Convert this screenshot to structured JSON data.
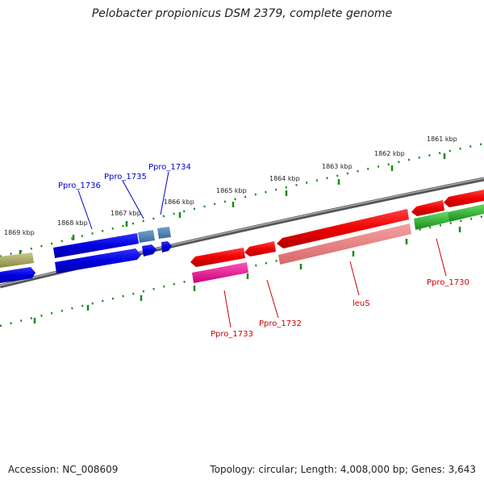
{
  "title": "Pelobacter propionicus DSM 2379, complete genome",
  "accession": "Accession: NC_008609",
  "summary": "Topology: circular; Length: 4,008,000 bp; Genes: 3,643",
  "kbp_labels": [
    "1861 kbp",
    "1862 kbp",
    "1863 kbp",
    "1864 kbp",
    "1865 kbp",
    "1866 kbp",
    "1867 kbp",
    "1868 kbp",
    "1869 kbp"
  ],
  "gene_labels": {
    "ppro_1736": "Ppro_1736",
    "ppro_1735": "Ppro_1735",
    "ppro_1734": "Ppro_1734",
    "ppro_1733": "Ppro_1733",
    "ppro_1732": "Ppro_1732",
    "leus": "leuS",
    "ppro_1730": "Ppro_1730"
  },
  "colors": {
    "blue": "#0000ee",
    "steel_blue": "#4a7ab0",
    "red": "#ee0000",
    "pink": "#f08080",
    "magenta": "#ee1199",
    "green": "#22aa22",
    "olive": "#b0b060",
    "tick_green": "#1a8a1a",
    "backbone": "#777777"
  }
}
